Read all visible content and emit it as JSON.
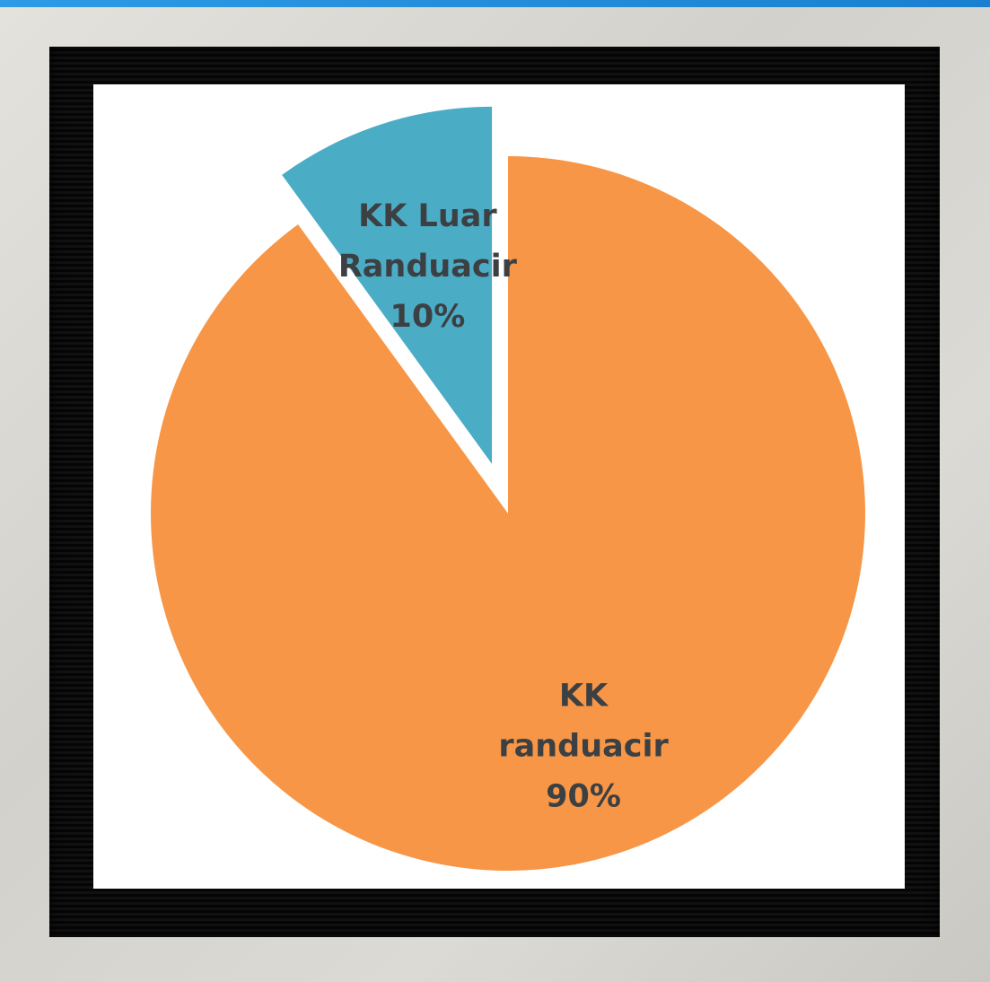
{
  "chart_data": {
    "type": "pie",
    "exploded": true,
    "start": "12 o'clock",
    "direction": "clockwise",
    "slices": [
      {
        "label_lines": [
          "KK",
          "randuacir"
        ],
        "percent_label": "90%",
        "value": 90,
        "color": "#f79646"
      },
      {
        "label_lines": [
          "KK Luar",
          "Randuacir"
        ],
        "percent_label": "10%",
        "value": 10,
        "color": "#4bacc6"
      }
    ],
    "label_color": "#3c4043"
  }
}
